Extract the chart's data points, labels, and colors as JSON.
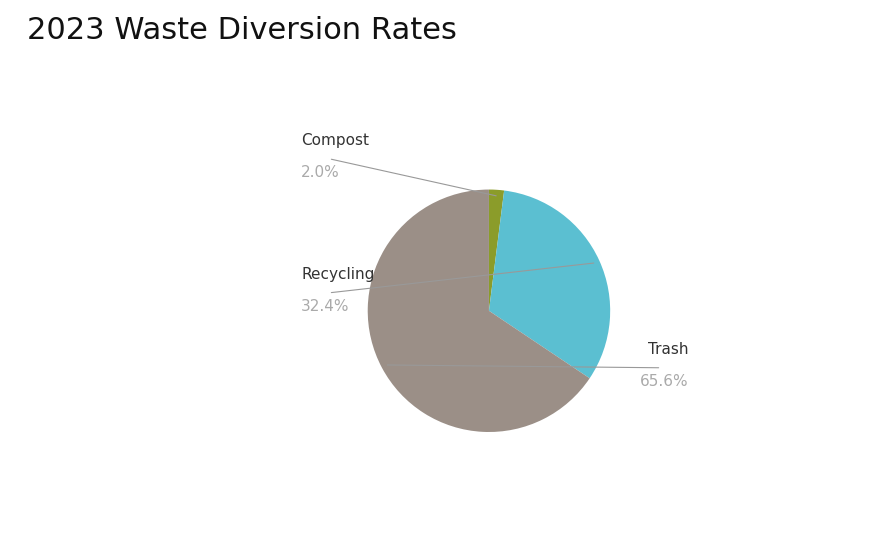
{
  "title": "2023 Waste Diversion Rates",
  "title_fontsize": 22,
  "title_fontweight": "normal",
  "title_color": "#111111",
  "slices": [
    {
      "label": "Compost",
      "value": 2.0,
      "color": "#8b9c2a"
    },
    {
      "label": "Recycling",
      "value": 32.4,
      "color": "#5bbfd1"
    },
    {
      "label": "Trash",
      "value": 65.6,
      "color": "#9b8f87"
    }
  ],
  "label_color": "#333333",
  "pct_color": "#aaaaaa",
  "label_fontsize": 11,
  "pct_fontsize": 11,
  "background_color": "#ffffff",
  "startangle": 90,
  "line_color": "#999999",
  "line_width": 0.8
}
